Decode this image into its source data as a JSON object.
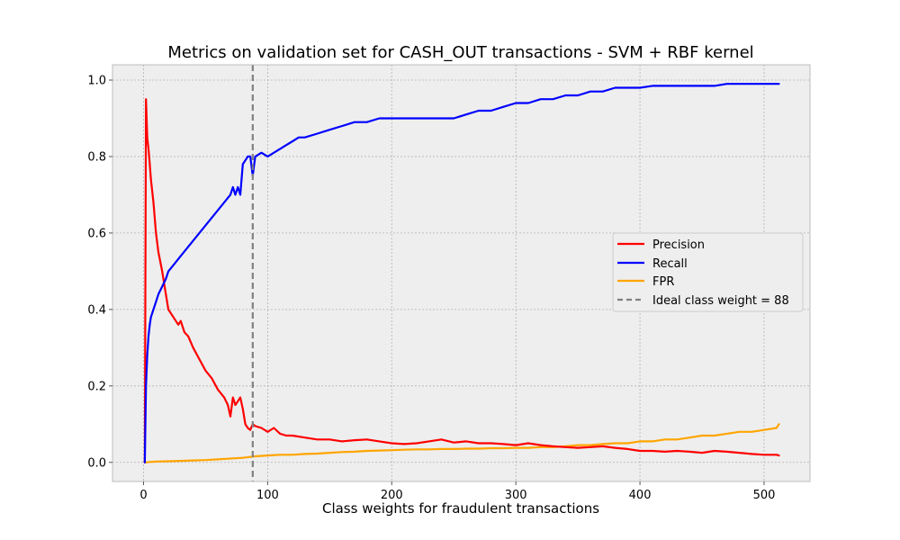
{
  "chart_data": {
    "type": "line",
    "title": "Metrics on validation set for CASH_OUT transactions - SVM + RBF kernel",
    "xlabel": "Class weights for fraudulent transactions",
    "ylabel": "",
    "xlim": [
      -25,
      537
    ],
    "ylim": [
      -0.05,
      1.04
    ],
    "xticks": [
      0,
      100,
      200,
      300,
      400,
      500
    ],
    "xtick_labels": [
      "0",
      "100",
      "200",
      "300",
      "400",
      "500"
    ],
    "yticks": [
      0.0,
      0.2,
      0.4,
      0.6,
      0.8,
      1.0
    ],
    "ytick_labels": [
      "0.0",
      "0.2",
      "0.4",
      "0.6",
      "0.8",
      "1.0"
    ],
    "grid": true,
    "legend_position": "center-right",
    "vline": {
      "x": 88,
      "label": "Ideal class weight = 88",
      "color": "#808080",
      "style": "dashed"
    },
    "series": [
      {
        "name": "Precision",
        "color": "#ff0000",
        "x": [
          1,
          2,
          3,
          4,
          5,
          6,
          8,
          10,
          12,
          15,
          18,
          20,
          24,
          28,
          30,
          33,
          36,
          40,
          45,
          50,
          55,
          60,
          65,
          68,
          70,
          72,
          74,
          76,
          78,
          80,
          82,
          84,
          86,
          88,
          90,
          95,
          100,
          105,
          110,
          115,
          120,
          130,
          140,
          150,
          160,
          170,
          180,
          190,
          200,
          210,
          220,
          230,
          240,
          250,
          260,
          270,
          280,
          290,
          300,
          310,
          320,
          330,
          340,
          350,
          360,
          370,
          380,
          390,
          400,
          410,
          420,
          430,
          440,
          450,
          460,
          470,
          480,
          490,
          500,
          510,
          512
        ],
        "values": [
          0.0,
          0.95,
          0.85,
          0.82,
          0.78,
          0.74,
          0.68,
          0.6,
          0.55,
          0.5,
          0.44,
          0.4,
          0.38,
          0.36,
          0.37,
          0.34,
          0.33,
          0.3,
          0.27,
          0.24,
          0.22,
          0.19,
          0.17,
          0.15,
          0.12,
          0.17,
          0.15,
          0.16,
          0.17,
          0.14,
          0.1,
          0.09,
          0.085,
          0.1,
          0.095,
          0.09,
          0.08,
          0.09,
          0.075,
          0.07,
          0.07,
          0.065,
          0.06,
          0.06,
          0.055,
          0.058,
          0.06,
          0.055,
          0.05,
          0.048,
          0.05,
          0.055,
          0.06,
          0.052,
          0.055,
          0.05,
          0.05,
          0.048,
          0.045,
          0.05,
          0.045,
          0.042,
          0.04,
          0.038,
          0.04,
          0.042,
          0.038,
          0.035,
          0.03,
          0.03,
          0.028,
          0.03,
          0.028,
          0.025,
          0.03,
          0.028,
          0.025,
          0.022,
          0.02,
          0.02,
          0.018
        ]
      },
      {
        "name": "Recall",
        "color": "#0000ff",
        "x": [
          1,
          2,
          3,
          4,
          5,
          6,
          8,
          10,
          12,
          15,
          18,
          20,
          25,
          30,
          35,
          40,
          45,
          50,
          55,
          60,
          65,
          70,
          72,
          74,
          76,
          78,
          80,
          82,
          84,
          86,
          88,
          90,
          95,
          100,
          105,
          110,
          115,
          120,
          125,
          130,
          140,
          150,
          160,
          170,
          180,
          190,
          200,
          210,
          220,
          230,
          240,
          250,
          260,
          270,
          280,
          290,
          300,
          310,
          320,
          330,
          340,
          350,
          360,
          370,
          380,
          390,
          400,
          410,
          420,
          430,
          440,
          450,
          460,
          470,
          480,
          490,
          500,
          510,
          512
        ],
        "values": [
          0.0,
          0.2,
          0.28,
          0.33,
          0.36,
          0.38,
          0.4,
          0.42,
          0.44,
          0.46,
          0.48,
          0.5,
          0.52,
          0.54,
          0.56,
          0.58,
          0.6,
          0.62,
          0.64,
          0.66,
          0.68,
          0.7,
          0.72,
          0.7,
          0.72,
          0.7,
          0.78,
          0.79,
          0.8,
          0.8,
          0.75,
          0.8,
          0.81,
          0.8,
          0.81,
          0.82,
          0.83,
          0.84,
          0.85,
          0.85,
          0.86,
          0.87,
          0.88,
          0.89,
          0.89,
          0.9,
          0.9,
          0.9,
          0.9,
          0.9,
          0.9,
          0.9,
          0.91,
          0.92,
          0.92,
          0.93,
          0.94,
          0.94,
          0.95,
          0.95,
          0.96,
          0.96,
          0.97,
          0.97,
          0.98,
          0.98,
          0.98,
          0.985,
          0.985,
          0.985,
          0.985,
          0.985,
          0.985,
          0.99,
          0.99,
          0.99,
          0.99,
          0.99,
          0.99
        ]
      },
      {
        "name": "FPR",
        "color": "#ffa500",
        "x": [
          1,
          5,
          10,
          20,
          30,
          40,
          50,
          60,
          70,
          80,
          88,
          90,
          100,
          110,
          120,
          130,
          140,
          150,
          160,
          170,
          180,
          190,
          200,
          210,
          220,
          230,
          240,
          250,
          260,
          270,
          280,
          290,
          300,
          310,
          320,
          330,
          340,
          350,
          360,
          370,
          380,
          390,
          400,
          410,
          420,
          430,
          440,
          450,
          460,
          470,
          480,
          490,
          500,
          510,
          512
        ],
        "values": [
          0.0,
          0.001,
          0.002,
          0.003,
          0.004,
          0.005,
          0.006,
          0.008,
          0.01,
          0.012,
          0.015,
          0.016,
          0.018,
          0.02,
          0.02,
          0.022,
          0.023,
          0.025,
          0.027,
          0.028,
          0.03,
          0.031,
          0.032,
          0.033,
          0.034,
          0.034,
          0.035,
          0.035,
          0.036,
          0.036,
          0.037,
          0.037,
          0.038,
          0.038,
          0.04,
          0.04,
          0.042,
          0.045,
          0.045,
          0.048,
          0.05,
          0.05,
          0.055,
          0.055,
          0.06,
          0.06,
          0.065,
          0.07,
          0.07,
          0.075,
          0.08,
          0.08,
          0.085,
          0.09,
          0.1
        ]
      }
    ]
  }
}
